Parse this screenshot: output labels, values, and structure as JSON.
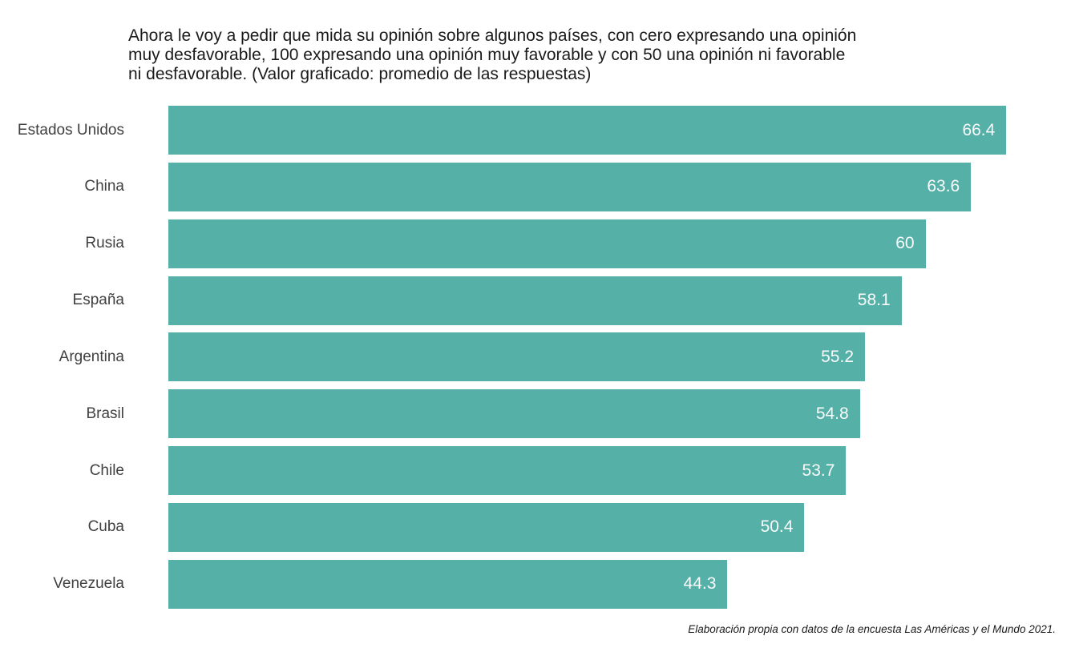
{
  "chart": {
    "title": "Ahora le voy a pedir que mida su opinión sobre algunos países, con cero expresando una opinión muy desfavorable, 100 expresando una opinión muy favorable y con 50 una opinión ni favorable ni desfavorable. (Valor graficado: promedio de las respuestas)",
    "title_lines": [
      "Ahora le voy a pedir que mida su opinión sobre algunos países, con cero expresando una opinión",
      "muy desfavorable, 100 expresando una opinión muy favorable y con 50 una opinión ni favorable",
      "ni desfavorable. (Valor graficado: promedio de las respuestas)"
    ],
    "source_note": "Elaboración propia con datos de la encuesta Las Américas y el Mundo 2021."
  },
  "colors": {
    "bar": "#55b1a8",
    "category_label": "#404040",
    "value_label": "#fafafa",
    "title_text": "#1a1a1a",
    "background": "#ffffff"
  },
  "chart_data": {
    "type": "bar",
    "orientation": "horizontal",
    "title": "Ahora le voy a pedir que mida su opinión sobre algunos países, con cero expresando una opinión muy desfavorable, 100 expresando una opinión muy favorable y con 50 una opinión ni favorable ni desfavorable. (Valor graficado: promedio de las respuestas)",
    "categories": [
      "Estados Unidos",
      "China",
      "Rusia",
      "España",
      "Argentina",
      "Brasil",
      "Chile",
      "Cuba",
      "Venezuela"
    ],
    "values": [
      66.4,
      63.6,
      60,
      58.1,
      55.2,
      54.8,
      53.7,
      50.4,
      44.3
    ],
    "value_labels": [
      "66.4",
      "63.6",
      "60",
      "58.1",
      "55.2",
      "54.8",
      "53.7",
      "50.4",
      "44.3"
    ],
    "xlabel": "",
    "ylabel": "",
    "xlim": [
      0,
      70
    ],
    "grid": false,
    "legend": false,
    "value_label_position": "inside-end",
    "bar_color": "#55b1a8",
    "source_note": "Elaboración propia con datos de la encuesta Las Américas y el Mundo 2021."
  }
}
